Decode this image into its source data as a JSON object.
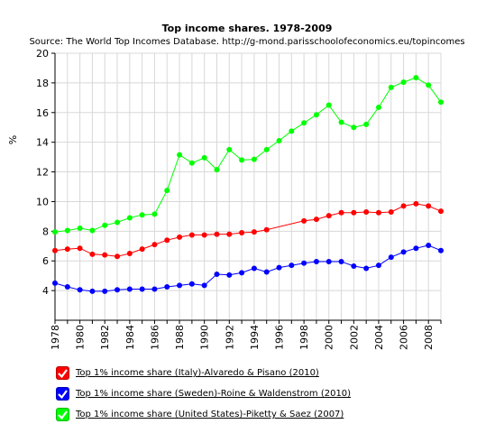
{
  "colors": {
    "italy": "#ff0000",
    "sweden": "#0000ff",
    "usa": "#00ff00"
  },
  "legend": {
    "items": [
      {
        "label": "Top 1% income share (Italy)-Alvaredo & Pisano (2010)",
        "color": "#ff0000",
        "icon": "checkmark-icon"
      },
      {
        "label": "Top 1% income share (Sweden)-Roine & Waldenstrom (2010)",
        "color": "#0000ff",
        "icon": "checkmark-icon"
      },
      {
        "label": "Top 1% income share (United States)-Piketty & Saez (2007)",
        "color": "#00ff00",
        "icon": "checkmark-icon"
      }
    ]
  },
  "chart_data": {
    "type": "line",
    "title": "Top income shares. 1978-2009",
    "subtitle": "Source: The World Top Incomes Database. http://g-mond.parisschoolofeconomics.eu/topincomes",
    "xlabel": "",
    "ylabel": "%",
    "xlim": [
      1978,
      2009
    ],
    "ylim": [
      2,
      20
    ],
    "yticks": [
      4,
      6,
      8,
      10,
      12,
      14,
      16,
      18,
      20
    ],
    "xticks": [
      1978,
      1980,
      1982,
      1984,
      1986,
      1988,
      1990,
      1992,
      1994,
      1996,
      1998,
      2000,
      2002,
      2004,
      2006,
      2008
    ],
    "grid": true,
    "legend_position": "bottom",
    "series": [
      {
        "name": "Top 1% income share (Italy)-Alvaredo & Pisano (2010)",
        "color": "#ff0000",
        "points": [
          [
            1978,
            6.7
          ],
          [
            1979,
            6.8
          ],
          [
            1980,
            6.85
          ],
          [
            1981,
            6.45
          ],
          [
            1982,
            6.4
          ],
          [
            1983,
            6.3
          ],
          [
            1984,
            6.5
          ],
          [
            1985,
            6.8
          ],
          [
            1986,
            7.1
          ],
          [
            1987,
            7.4
          ],
          [
            1988,
            7.6
          ],
          [
            1989,
            7.75
          ],
          [
            1990,
            7.75
          ],
          [
            1991,
            7.8
          ],
          [
            1992,
            7.8
          ],
          [
            1993,
            7.9
          ],
          [
            1994,
            7.95
          ],
          [
            1995,
            8.1
          ],
          [
            1998,
            8.7
          ],
          [
            1999,
            8.8
          ],
          [
            2000,
            9.05
          ],
          [
            2001,
            9.25
          ],
          [
            2002,
            9.25
          ],
          [
            2003,
            9.3
          ],
          [
            2004,
            9.25
          ],
          [
            2005,
            9.3
          ],
          [
            2006,
            9.7
          ],
          [
            2007,
            9.85
          ],
          [
            2008,
            9.7
          ],
          [
            2009,
            9.35
          ]
        ]
      },
      {
        "name": "Top 1% income share (Sweden)-Roine & Waldenstrom (2010)",
        "color": "#0000ff",
        "points": [
          [
            1978,
            4.5
          ],
          [
            1979,
            4.25
          ],
          [
            1980,
            4.05
          ],
          [
            1981,
            3.95
          ],
          [
            1982,
            3.95
          ],
          [
            1983,
            4.05
          ],
          [
            1984,
            4.1
          ],
          [
            1985,
            4.1
          ],
          [
            1986,
            4.1
          ],
          [
            1987,
            4.25
          ],
          [
            1988,
            4.35
          ],
          [
            1989,
            4.45
          ],
          [
            1990,
            4.35
          ],
          [
            1991,
            5.1
          ],
          [
            1992,
            5.05
          ],
          [
            1993,
            5.2
          ],
          [
            1994,
            5.5
          ],
          [
            1995,
            5.25
          ],
          [
            1996,
            5.55
          ],
          [
            1997,
            5.7
          ],
          [
            1998,
            5.85
          ],
          [
            1999,
            5.95
          ],
          [
            2000,
            5.95
          ],
          [
            2001,
            5.95
          ],
          [
            2002,
            5.65
          ],
          [
            2003,
            5.5
          ],
          [
            2004,
            5.7
          ],
          [
            2005,
            6.25
          ],
          [
            2006,
            6.6
          ],
          [
            2007,
            6.85
          ],
          [
            2008,
            7.05
          ],
          [
            2009,
            6.7
          ]
        ]
      },
      {
        "name": "Top 1% income share (United States)-Piketty & Saez (2007)",
        "color": "#00ff00",
        "points": [
          [
            1978,
            7.95
          ],
          [
            1979,
            8.05
          ],
          [
            1980,
            8.2
          ],
          [
            1981,
            8.05
          ],
          [
            1982,
            8.4
          ],
          [
            1983,
            8.6
          ],
          [
            1984,
            8.9
          ],
          [
            1985,
            9.1
          ],
          [
            1986,
            9.15
          ],
          [
            1987,
            10.75
          ],
          [
            1988,
            13.15
          ],
          [
            1989,
            12.6
          ],
          [
            1990,
            12.95
          ],
          [
            1991,
            12.15
          ],
          [
            1992,
            13.5
          ],
          [
            1993,
            12.8
          ],
          [
            1994,
            12.85
          ],
          [
            1995,
            13.5
          ],
          [
            1996,
            14.1
          ],
          [
            1997,
            14.75
          ],
          [
            1998,
            15.3
          ],
          [
            1999,
            15.85
          ],
          [
            2000,
            16.5
          ],
          [
            2001,
            15.35
          ],
          [
            2002,
            15.0
          ],
          [
            2003,
            15.2
          ],
          [
            2004,
            16.35
          ],
          [
            2005,
            17.7
          ],
          [
            2006,
            18.05
          ],
          [
            2007,
            18.35
          ],
          [
            2008,
            17.85
          ],
          [
            2009,
            16.7
          ]
        ]
      }
    ]
  }
}
